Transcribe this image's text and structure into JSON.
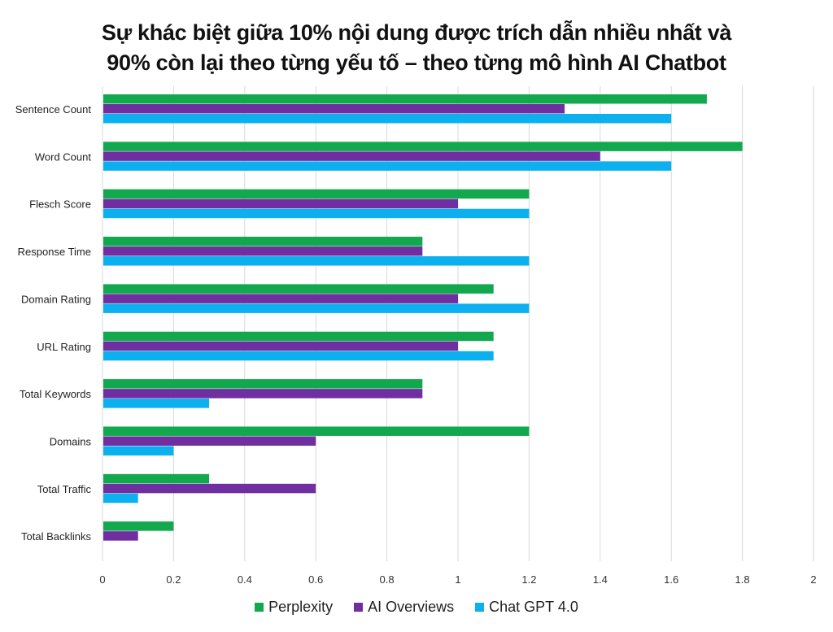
{
  "chart_data": {
    "type": "bar",
    "orientation": "horizontal",
    "title_lines": [
      "Sự khác biệt giữa 10% nội dung được trích dẫn nhiều nhất và",
      "90% còn lại theo từng yếu tố – theo từng mô hình AI Chatbot"
    ],
    "categories": [
      "Sentence Count",
      "Word Count",
      "Flesch Score",
      "Response Time",
      "Domain Rating",
      "URL Rating",
      "Total Keywords",
      "Domains",
      "Total Traffic",
      "Total Backlinks"
    ],
    "series": [
      {
        "name": "Perplexity",
        "color": "#12a84e",
        "values": [
          1.7,
          1.8,
          1.2,
          0.9,
          1.1,
          1.1,
          0.9,
          1.2,
          0.3,
          0.2
        ]
      },
      {
        "name": "AI Overviews",
        "color": "#6f2fa0",
        "values": [
          1.3,
          1.4,
          1.0,
          0.9,
          1.0,
          1.0,
          0.9,
          0.6,
          0.6,
          0.1
        ]
      },
      {
        "name": "Chat GPT 4.0",
        "color": "#0db0ee",
        "values": [
          1.6,
          1.6,
          1.2,
          1.2,
          1.2,
          1.1,
          0.3,
          0.2,
          0.1,
          0.0
        ]
      }
    ],
    "xlim": [
      0,
      2
    ],
    "xticks": [
      "0",
      "0.2",
      "0.4",
      "0.6",
      "0.8",
      "1",
      "1.2",
      "1.4",
      "1.6",
      "1.8",
      "2"
    ],
    "grid": "vertical",
    "legend": "bottom"
  }
}
